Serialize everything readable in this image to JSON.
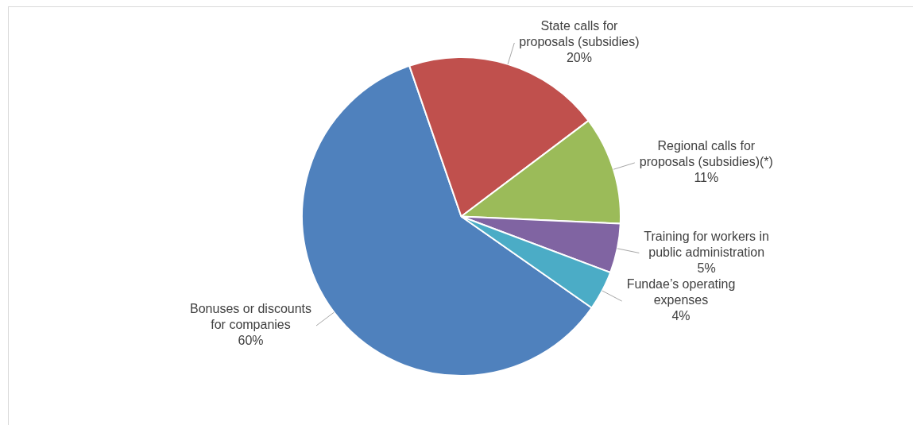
{
  "chart_data": {
    "type": "pie",
    "categories": [
      "Bonuses or discounts for companies",
      "State calls for proposals (subsidies)",
      "Regional calls for proposals (subsidies)(*)",
      "Training for workers in public administration",
      "Fundae’s operating expenses"
    ],
    "values": [
      60,
      20,
      11,
      5,
      4
    ],
    "colors": [
      "#4f81bd",
      "#c0504d",
      "#9bbb59",
      "#8064a2",
      "#4bacc6"
    ],
    "value_labels": [
      "60%",
      "20%",
      "11%",
      "5%",
      "4%"
    ],
    "legend": false
  }
}
